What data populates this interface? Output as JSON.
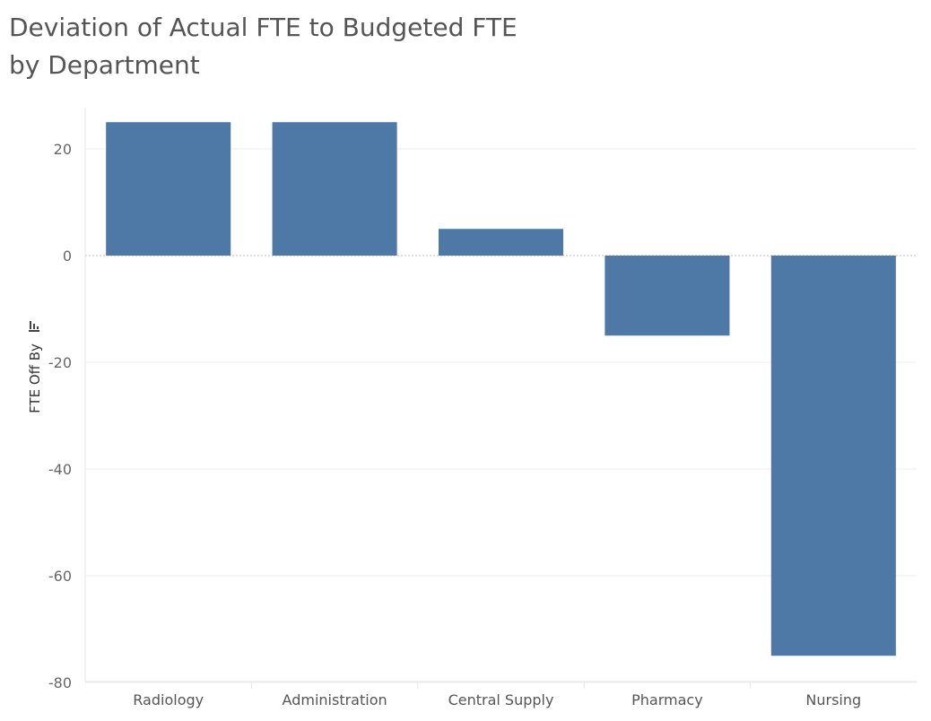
{
  "chart_data": {
    "type": "bar",
    "title_line1": "Deviation of Actual FTE to Budgeted FTE",
    "title_line2": "by Department",
    "xlabel": "",
    "ylabel": "FTE Off By",
    "ylabel_icon": "sort-icon",
    "categories": [
      "Radiology",
      "Administration",
      "Central Supply",
      "Pharmacy",
      "Nursing"
    ],
    "values": [
      25,
      25,
      5,
      -15,
      -75
    ],
    "ylim": [
      -80,
      25
    ],
    "yticks": [
      20,
      0,
      -20,
      -40,
      -60,
      -80
    ],
    "grid": true,
    "bar_color": "#4e79a7",
    "gridline_color": "#eeeeee",
    "zero_line_color": "#bbbbbb"
  }
}
